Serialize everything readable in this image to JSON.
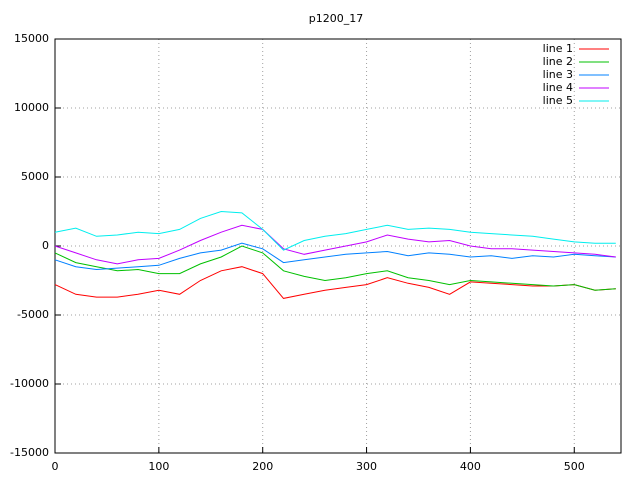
{
  "chart_data": {
    "type": "line",
    "title": "p1200_17",
    "x": [
      0,
      20,
      40,
      60,
      80,
      100,
      120,
      140,
      160,
      180,
      200,
      220,
      240,
      260,
      280,
      300,
      320,
      340,
      360,
      380,
      400,
      420,
      440,
      460,
      480,
      500,
      520,
      540
    ],
    "series": [
      {
        "name": "line 1",
        "color": "#ff0000",
        "values": [
          -2800,
          -3500,
          -3700,
          -3700,
          -3500,
          -3200,
          -3500,
          -2500,
          -1800,
          -1500,
          -2000,
          -3800,
          -3500,
          -3200,
          -3000,
          -2800,
          -2300,
          -2700,
          -3000,
          -3500,
          -2600,
          -2700,
          -2800,
          -2900,
          -2900,
          -2800,
          -3200,
          -3100
        ]
      },
      {
        "name": "line 2",
        "color": "#00c000",
        "values": [
          -500,
          -1200,
          -1500,
          -1800,
          -1700,
          -2000,
          -2000,
          -1300,
          -800,
          0,
          -500,
          -1800,
          -2200,
          -2500,
          -2300,
          -2000,
          -1800,
          -2300,
          -2500,
          -2800,
          -2500,
          -2600,
          -2700,
          -2800,
          -2900,
          -2800,
          -3200,
          -3100
        ]
      },
      {
        "name": "line 3",
        "color": "#0080ff",
        "values": [
          -1000,
          -1500,
          -1700,
          -1600,
          -1500,
          -1400,
          -900,
          -500,
          -300,
          200,
          -200,
          -1200,
          -1000,
          -800,
          -600,
          -500,
          -400,
          -700,
          -500,
          -600,
          -800,
          -700,
          -900,
          -700,
          -800,
          -600,
          -700,
          -800
        ]
      },
      {
        "name": "line 4",
        "color": "#c000ff",
        "values": [
          0,
          -500,
          -1000,
          -1300,
          -1000,
          -900,
          -300,
          400,
          1000,
          1500,
          1200,
          -200,
          -600,
          -300,
          0,
          300,
          800,
          500,
          300,
          400,
          0,
          -200,
          -200,
          -300,
          -400,
          -500,
          -600,
          -800
        ]
      },
      {
        "name": "line 5",
        "color": "#00eeee",
        "values": [
          1000,
          1300,
          700,
          800,
          1000,
          900,
          1200,
          2000,
          2500,
          2400,
          1200,
          -300,
          400,
          700,
          900,
          1200,
          1500,
          1200,
          1300,
          1200,
          1000,
          900,
          800,
          700,
          500,
          300,
          200,
          200
        ]
      }
    ],
    "xlim": [
      0,
      545
    ],
    "ylim": [
      -15000,
      15000
    ],
    "xticks": [
      0,
      100,
      200,
      300,
      400,
      500
    ],
    "yticks": [
      -15000,
      -10000,
      -5000,
      0,
      5000,
      10000,
      15000
    ],
    "grid": true,
    "legend": "top-right"
  }
}
